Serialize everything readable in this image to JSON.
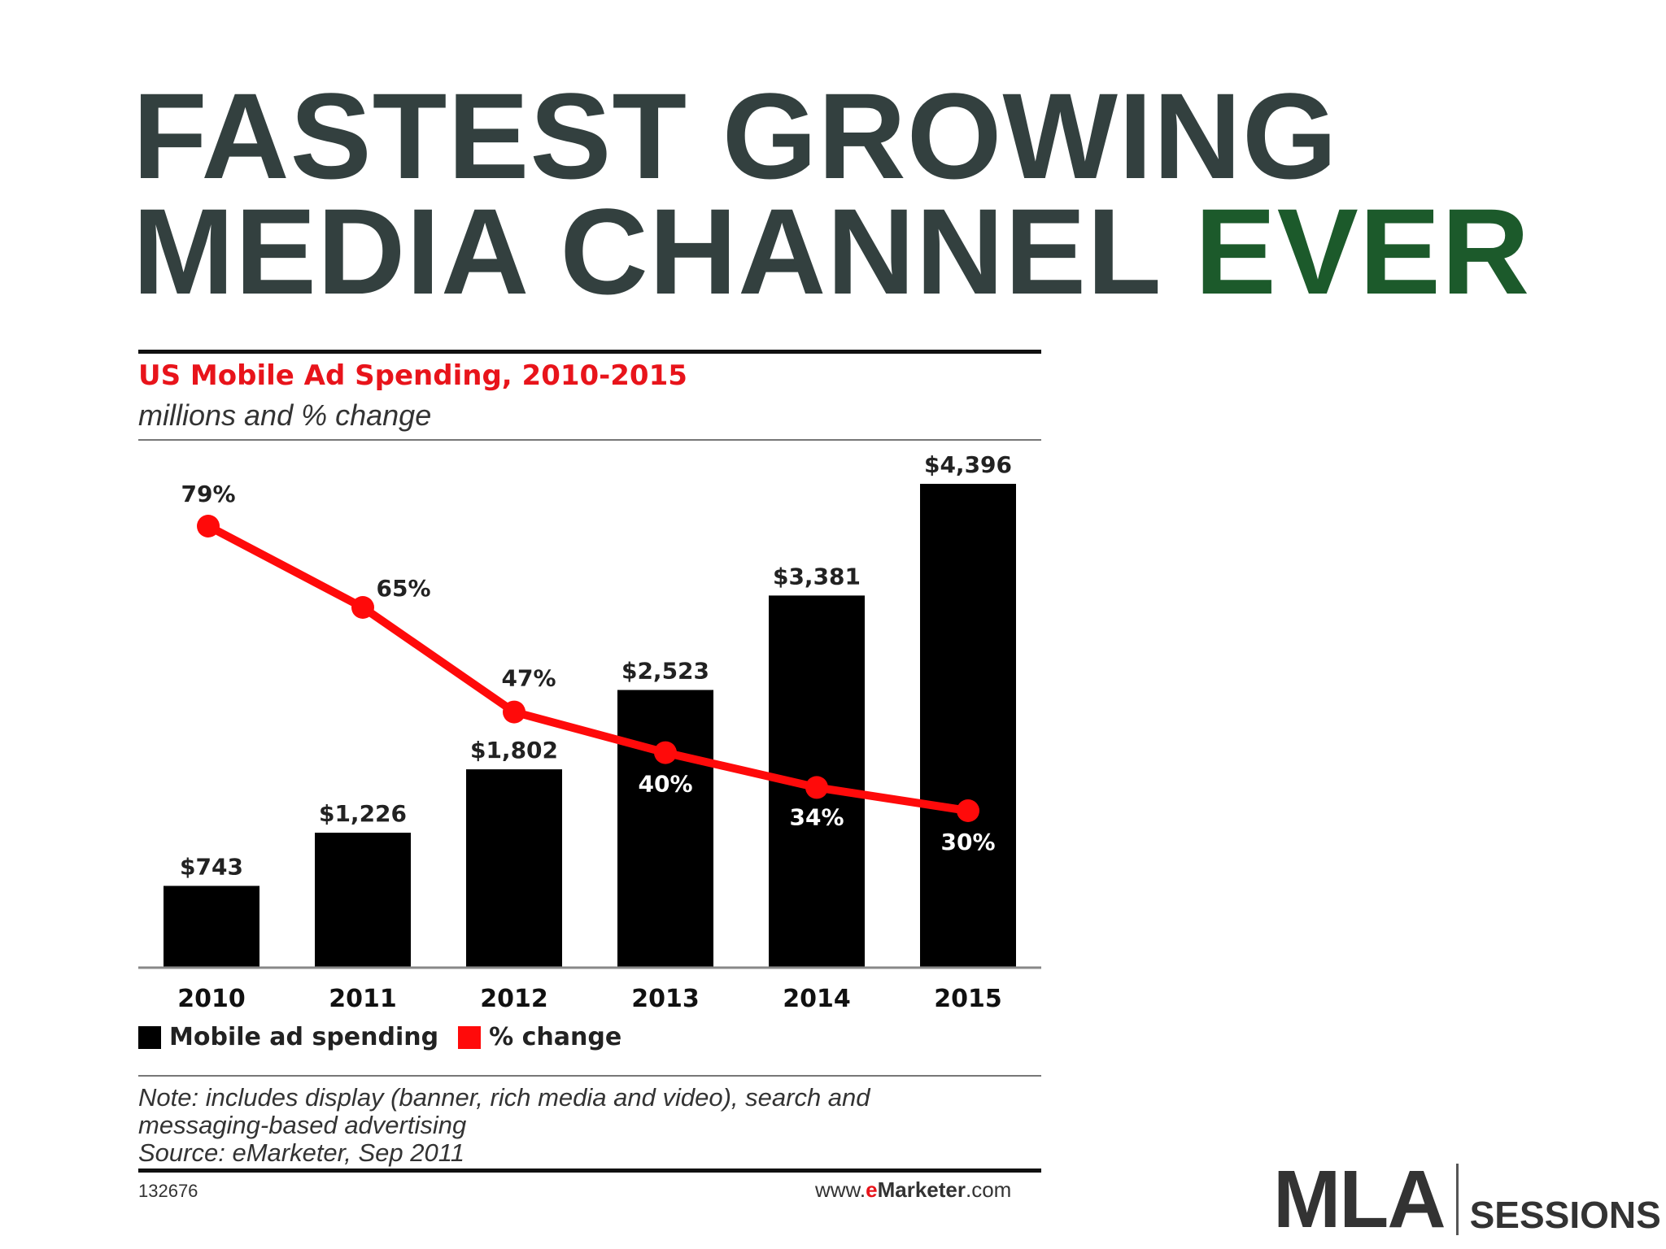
{
  "headline": {
    "line1": "FASTEST GROWING",
    "line2_main": "MEDIA CHANNEL",
    "line2_accent": "EVER"
  },
  "chart_data": {
    "type": "bar",
    "title": "US Mobile Ad Spending, 2010-2015",
    "subtitle": "millions and % change",
    "categories": [
      "2010",
      "2011",
      "2012",
      "2013",
      "2014",
      "2015"
    ],
    "series": [
      {
        "name": "Mobile ad spending",
        "type": "bar",
        "values": [
          743,
          1226,
          1802,
          2523,
          3381,
          4396
        ],
        "labels": [
          "$743",
          "$1,226",
          "$1,802",
          "$2,523",
          "$3,381",
          "$4,396"
        ],
        "color": "#000000"
      },
      {
        "name": "% change",
        "type": "line",
        "values": [
          79,
          65,
          47,
          40,
          34,
          30
        ],
        "labels": [
          "79%",
          "65%",
          "47%",
          "40%",
          "34%",
          "30%"
        ],
        "color": "#ff0a0a"
      }
    ],
    "grid": false,
    "legend_position": "bottom-left"
  },
  "note": {
    "line1": "Note: includes display (banner, rich media and video), search and",
    "line2": "messaging-based advertising",
    "source": "Source: eMarketer, Sep 2011"
  },
  "footer": {
    "id": "132676",
    "url_prefix": "www.",
    "url_e": "e",
    "url_marketer": "Marketer",
    "url_suffix": ".com"
  },
  "logo": {
    "mark": "MLA",
    "text": "SESSIONS"
  }
}
